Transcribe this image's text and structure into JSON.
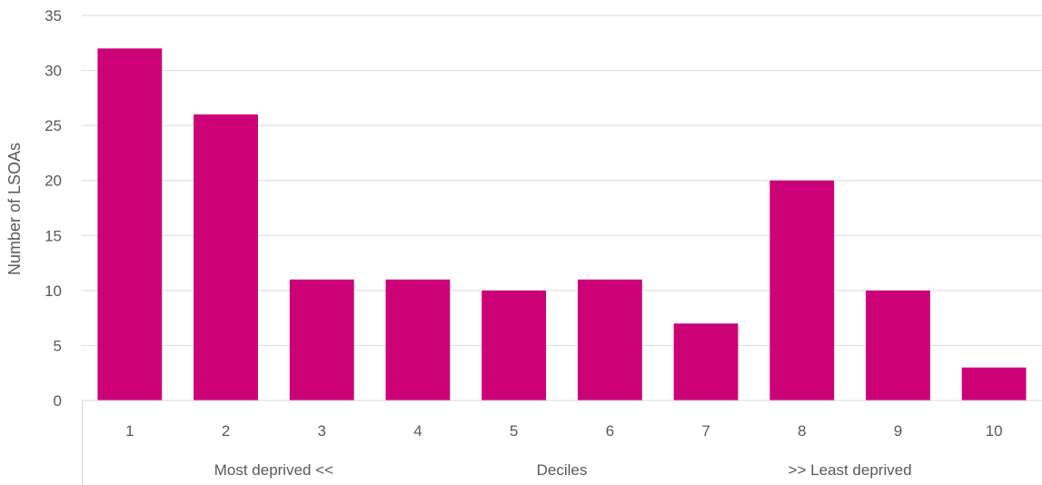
{
  "chart_data": {
    "type": "bar",
    "categories": [
      "1",
      "2",
      "3",
      "4",
      "5",
      "6",
      "7",
      "8",
      "9",
      "10"
    ],
    "values": [
      32,
      26,
      11,
      11,
      10,
      11,
      7,
      20,
      10,
      3
    ],
    "title": "",
    "ylabel": "Number of LSOAs",
    "xlabel": "",
    "x_group_labels": [
      "Most deprived <<",
      "Deciles",
      ">> Least deprived"
    ],
    "ylim": [
      0,
      35
    ],
    "yticks": [
      0,
      5,
      10,
      15,
      20,
      25,
      30,
      35
    ],
    "grid": true,
    "legend": "none",
    "colors": {
      "bar": "#CC0077",
      "grid": "#D9D9D9",
      "text": "#595959"
    }
  }
}
